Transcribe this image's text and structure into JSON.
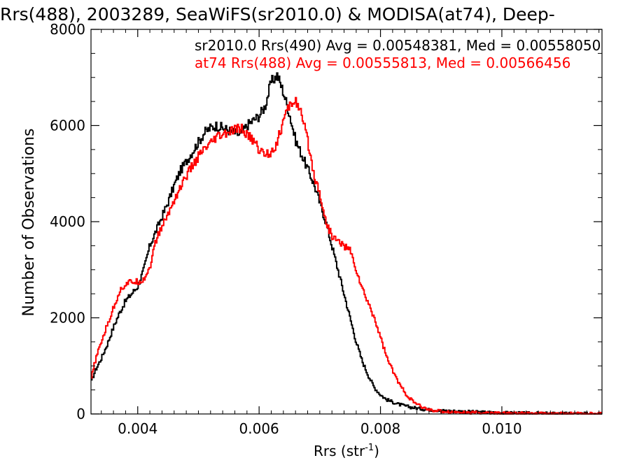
{
  "chart_data": {
    "type": "line",
    "title": "Rrs(488), 2003289, SeaWiFS(sr2010.0) & MODISA(at74), Deep-",
    "xlabel_main": "Rrs (str",
    "xlabel_sup": "-1",
    "xlabel_close": ")",
    "ylabel": "Number of Observations",
    "xlim": [
      0.00323,
      0.01165
    ],
    "ylim": [
      0,
      8000
    ],
    "x_ticks": [
      0.004,
      0.006,
      0.008,
      0.01
    ],
    "x_tick_labels": [
      "0.004",
      "0.006",
      "0.008",
      "0.010"
    ],
    "y_ticks": [
      0,
      2000,
      4000,
      6000,
      8000
    ],
    "y_tick_labels": [
      "0",
      "2000",
      "4000",
      "6000",
      "8000"
    ],
    "grid": false,
    "legend_position": "top-right",
    "series": [
      {
        "name": "sr2010.0 Rrs(490) Avg = 0.00548381, Med = 0.00558050",
        "color": "#000000",
        "x": [
          0.00323,
          0.0033,
          0.0034,
          0.0035,
          0.0036,
          0.0037,
          0.0038,
          0.0039,
          0.004,
          0.0041,
          0.0042,
          0.0043,
          0.0044,
          0.0045,
          0.0046,
          0.0047,
          0.0048,
          0.0049,
          0.005,
          0.0051,
          0.0052,
          0.0053,
          0.0054,
          0.0055,
          0.0056,
          0.0057,
          0.0058,
          0.0059,
          0.006,
          0.0061,
          0.0062,
          0.0063,
          0.0064,
          0.0065,
          0.0066,
          0.0067,
          0.0068,
          0.0069,
          0.007,
          0.0071,
          0.0072,
          0.0073,
          0.0074,
          0.0075,
          0.0076,
          0.0077,
          0.0078,
          0.0079,
          0.008,
          0.0081,
          0.0082,
          0.0083,
          0.0084,
          0.0085,
          0.0086,
          0.0087,
          0.0088,
          0.0089,
          0.009,
          0.0092,
          0.0094,
          0.0096,
          0.0098,
          0.01,
          0.0102,
          0.0104,
          0.0106,
          0.0108,
          0.011,
          0.0112,
          0.0114,
          0.01165
        ],
        "y": [
          650,
          900,
          1150,
          1450,
          1800,
          2100,
          2350,
          2500,
          2650,
          3000,
          3500,
          3800,
          4100,
          4400,
          4750,
          5050,
          5250,
          5450,
          5650,
          5850,
          5950,
          6000,
          5950,
          5900,
          5850,
          5800,
          6000,
          6100,
          6200,
          6400,
          6900,
          7050,
          6700,
          6250,
          5700,
          5400,
          5100,
          4800,
          4400,
          4000,
          3500,
          3000,
          2500,
          2000,
          1500,
          1100,
          800,
          550,
          400,
          300,
          250,
          200,
          170,
          140,
          120,
          100,
          90,
          80,
          70,
          60,
          50,
          40,
          30,
          25,
          20,
          15,
          12,
          10,
          8,
          6,
          5,
          5
        ]
      },
      {
        "name": "at74 Rrs(488) Avg = 0.00555813, Med = 0.00566456",
        "color": "#ff0000",
        "x": [
          0.00323,
          0.0033,
          0.0034,
          0.0035,
          0.0036,
          0.0037,
          0.0038,
          0.0039,
          0.004,
          0.0041,
          0.0042,
          0.0043,
          0.0044,
          0.0045,
          0.0046,
          0.0047,
          0.0048,
          0.0049,
          0.005,
          0.0051,
          0.0052,
          0.0053,
          0.0054,
          0.0055,
          0.0056,
          0.0057,
          0.0058,
          0.0059,
          0.006,
          0.0061,
          0.0062,
          0.0063,
          0.0064,
          0.0065,
          0.0066,
          0.0067,
          0.0068,
          0.0069,
          0.007,
          0.0071,
          0.0072,
          0.0073,
          0.0074,
          0.0075,
          0.0076,
          0.0077,
          0.0078,
          0.0079,
          0.008,
          0.0081,
          0.0082,
          0.0083,
          0.0084,
          0.0085,
          0.0086,
          0.0087,
          0.0088,
          0.0089,
          0.009,
          0.0092,
          0.0094,
          0.0096,
          0.0098,
          0.01,
          0.0102,
          0.0104,
          0.0106,
          0.0108,
          0.011,
          0.0112,
          0.0114,
          0.01165
        ],
        "y": [
          700,
          1100,
          1500,
          1850,
          2200,
          2550,
          2700,
          2750,
          2750,
          2800,
          3050,
          3600,
          3900,
          4150,
          4450,
          4700,
          4950,
          5150,
          5350,
          5500,
          5600,
          5750,
          5800,
          5850,
          5900,
          5950,
          5800,
          5700,
          5500,
          5400,
          5450,
          5650,
          6100,
          6400,
          6550,
          6200,
          5700,
          5000,
          4600,
          4000,
          3700,
          3600,
          3500,
          3400,
          3000,
          2600,
          2300,
          2000,
          1600,
          1200,
          900,
          650,
          450,
          300,
          200,
          130,
          90,
          70,
          55,
          40,
          30,
          25,
          20,
          15,
          12,
          10,
          8,
          6,
          5,
          5,
          4,
          4
        ]
      }
    ]
  }
}
